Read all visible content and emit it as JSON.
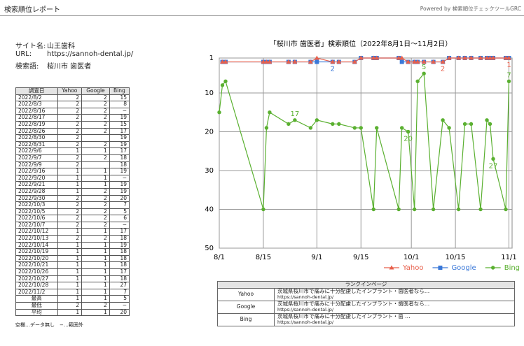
{
  "header": {
    "title": "検索順位レポート",
    "powered": "Powered by 検索順位チェックツールGRC"
  },
  "info": [
    {
      "label": "サイト名:",
      "value": "山王歯科"
    },
    {
      "label": "URL:",
      "value": "https://sannoh-dental.jp/"
    },
    {
      "label": "検索語:",
      "value": "桜川市 歯医者"
    }
  ],
  "table": {
    "header": [
      "調査日",
      "Yahoo",
      "Google",
      "Bing"
    ],
    "rows": [
      [
        "2022/8/2",
        2,
        2,
        15
      ],
      [
        "2022/8/3",
        2,
        2,
        8
      ],
      [
        "2022/8/16",
        2,
        2,
        "−"
      ],
      [
        "2022/8/17",
        2,
        2,
        19
      ],
      [
        "2022/8/19",
        2,
        2,
        15
      ],
      [
        "2022/8/26",
        2,
        2,
        17
      ],
      [
        "2022/8/30",
        2,
        null,
        19
      ],
      [
        "2022/8/31",
        2,
        2,
        19
      ],
      [
        "2022/9/6",
        1,
        1,
        17
      ],
      [
        "2022/9/7",
        2,
        2,
        18
      ],
      [
        "2022/9/9",
        2,
        null,
        18
      ],
      [
        "2022/9/16",
        1,
        1,
        19
      ],
      [
        "2022/9/20",
        1,
        1,
        "−"
      ],
      [
        "2022/9/21",
        1,
        1,
        19
      ],
      [
        "2022/9/28",
        1,
        2,
        19
      ],
      [
        "2022/9/30",
        2,
        2,
        20
      ],
      [
        "2022/10/3",
        2,
        2,
        7
      ],
      [
        "2022/10/5",
        2,
        2,
        5
      ],
      [
        "2022/10/6",
        2,
        2,
        6
      ],
      [
        "2022/10/7",
        2,
        2,
        "−"
      ],
      [
        "2022/10/12",
        1,
        1,
        17
      ],
      [
        "2022/10/13",
        2,
        2,
        18
      ],
      [
        "2022/10/14",
        1,
        1,
        19
      ],
      [
        "2022/10/19",
        1,
        1,
        18
      ],
      [
        "2022/10/20",
        1,
        1,
        18
      ],
      [
        "2022/10/21",
        1,
        1,
        18
      ],
      [
        "2022/10/26",
        1,
        1,
        17
      ],
      [
        "2022/10/27",
        1,
        1,
        18
      ],
      [
        "2022/10/28",
        1,
        1,
        27
      ],
      [
        "2022/11/2",
        1,
        1,
        7
      ]
    ],
    "summary": [
      [
        "最高",
        1,
        1,
        5
      ],
      [
        "最低",
        2,
        2,
        "−"
      ],
      [
        "平均",
        1,
        1,
        20
      ]
    ]
  },
  "note": "空欄…データ無し　−…範囲外",
  "rankin": {
    "title": "ランクインページ",
    "rows": [
      {
        "engine": "Yahoo",
        "page": "茨城県桜川市で痛みに十分配慮したインプラント・歯医者なら…",
        "url": "https://sannoh-dental.jp/"
      },
      {
        "engine": "Google",
        "page": "茨城県桜川市で痛みに十分配慮したインプラント・歯医者なら…",
        "url": "https://sannoh-dental.jp/"
      },
      {
        "engine": "Bing",
        "page": "茨城県桜川市で痛みに十分配慮したインプラント・歯 …",
        "url": "https://sannoh-dental.jp/"
      }
    ]
  },
  "chart_data": {
    "type": "line",
    "title": "「桜川市 歯医者」検索順位（2022年8月1日〜11月2日）",
    "x": [
      "8/1",
      "8/2",
      "8/3",
      "8/15",
      "8/16",
      "8/17",
      "8/23",
      "8/25",
      "8/30",
      "9/1",
      "9/6",
      "9/8",
      "9/13",
      "9/15",
      "9/19",
      "9/20",
      "9/27",
      "9/28",
      "9/30",
      "10/2",
      "10/3",
      "10/5",
      "10/8",
      "10/11",
      "10/13",
      "10/16",
      "10/18",
      "10/20",
      "10/23",
      "10/25",
      "10/26",
      "10/27",
      "10/31",
      "11/1"
    ],
    "xlim": [
      "8/1",
      "11/2"
    ],
    "xticks": [
      "8/1",
      "8/15",
      "9/1",
      "9/15",
      "10/1",
      "10/15",
      "11/1"
    ],
    "ylim": [
      1,
      50
    ],
    "y_inverted": true,
    "yticks": [
      1,
      10,
      20,
      30,
      40,
      50
    ],
    "grid": true,
    "legend": "bottom-right",
    "series": [
      {
        "name": "Yahoo",
        "color": "#e8604c",
        "marker": "triangle",
        "values": [
          null,
          2,
          2,
          2,
          2,
          2,
          2,
          2,
          2,
          1,
          2,
          2,
          2,
          1,
          1,
          1,
          1,
          1,
          2,
          2,
          2,
          2,
          2,
          2,
          1,
          1,
          1,
          1,
          1,
          1,
          1,
          1,
          1,
          1
        ],
        "value_labels": [
          null,
          null,
          null,
          null,
          null,
          null,
          null,
          null,
          null,
          null,
          null,
          null,
          null,
          null,
          null,
          null,
          null,
          null,
          null,
          null,
          null,
          null,
          null,
          "2",
          null,
          null,
          null,
          null,
          null,
          null,
          null,
          null,
          null,
          "1"
        ]
      },
      {
        "name": "Google",
        "color": "#3a78d8",
        "marker": "square",
        "values": [
          null,
          2,
          2,
          2,
          2,
          2,
          2,
          2,
          2,
          2,
          2,
          2,
          2,
          1,
          1,
          1,
          1,
          2,
          2,
          2,
          2,
          2,
          2,
          2,
          1,
          1,
          1,
          1,
          1,
          1,
          1,
          1,
          1,
          1
        ],
        "value_labels": [
          null,
          null,
          null,
          null,
          null,
          null,
          null,
          null,
          null,
          null,
          "2",
          null,
          null,
          null,
          null,
          null,
          null,
          null,
          null,
          null,
          null,
          null,
          null,
          null,
          null,
          null,
          null,
          null,
          null,
          null,
          null,
          null,
          null,
          null
        ]
      },
      {
        "name": "Bing",
        "color": "#5ab030",
        "marker": "circle",
        "values": [
          15,
          8,
          7,
          40,
          19,
          15,
          18,
          17,
          19,
          17,
          18,
          18,
          19,
          19,
          40,
          19,
          40,
          19,
          20,
          40,
          7,
          5,
          40,
          17,
          19,
          40,
          18,
          18,
          40,
          17,
          18,
          27,
          40,
          7
        ],
        "value_labels": [
          null,
          null,
          null,
          null,
          null,
          null,
          null,
          "17",
          null,
          null,
          null,
          null,
          null,
          null,
          null,
          null,
          null,
          null,
          "20",
          null,
          null,
          "5",
          null,
          null,
          null,
          null,
          null,
          null,
          null,
          null,
          null,
          "27",
          null,
          "7"
        ]
      }
    ]
  }
}
